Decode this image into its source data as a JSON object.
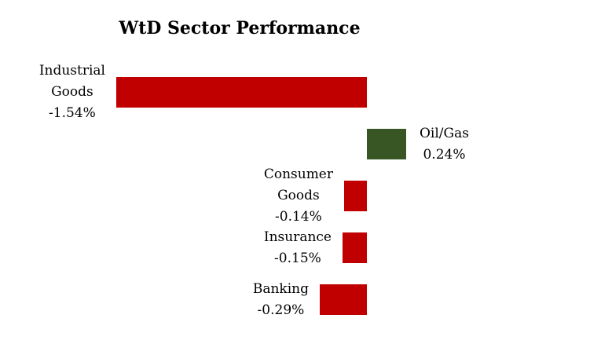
{
  "chart_data": {
    "type": "bar",
    "orientation": "horizontal",
    "title": "WtD Sector Performance",
    "categories": [
      "Industrial Goods",
      "Oil/Gas",
      "Consumer Goods",
      "Insurance",
      "Banking"
    ],
    "values": [
      -1.54,
      0.24,
      -0.14,
      -0.15,
      -0.29
    ],
    "value_labels": [
      "-1.54%",
      "0.24%",
      "-0.14%",
      "-0.15%",
      "-0.29%"
    ],
    "label_lines": [
      [
        "Industrial",
        "Goods",
        "-1.54%"
      ],
      [
        "Oil/Gas",
        "0.24%"
      ],
      [
        "Consumer",
        "Goods",
        "-0.14%"
      ],
      [
        "Insurance",
        "-0.15%"
      ],
      [
        "Banking",
        "-0.29%"
      ]
    ],
    "colors": {
      "negative": "#C00000",
      "positive": "#375623"
    },
    "background": "#FFFFFF",
    "text_color": "#000000",
    "value_format": "percent",
    "data_label_position": "outside-end",
    "axes_visible": false,
    "gridlines": false,
    "legend": "none"
  }
}
